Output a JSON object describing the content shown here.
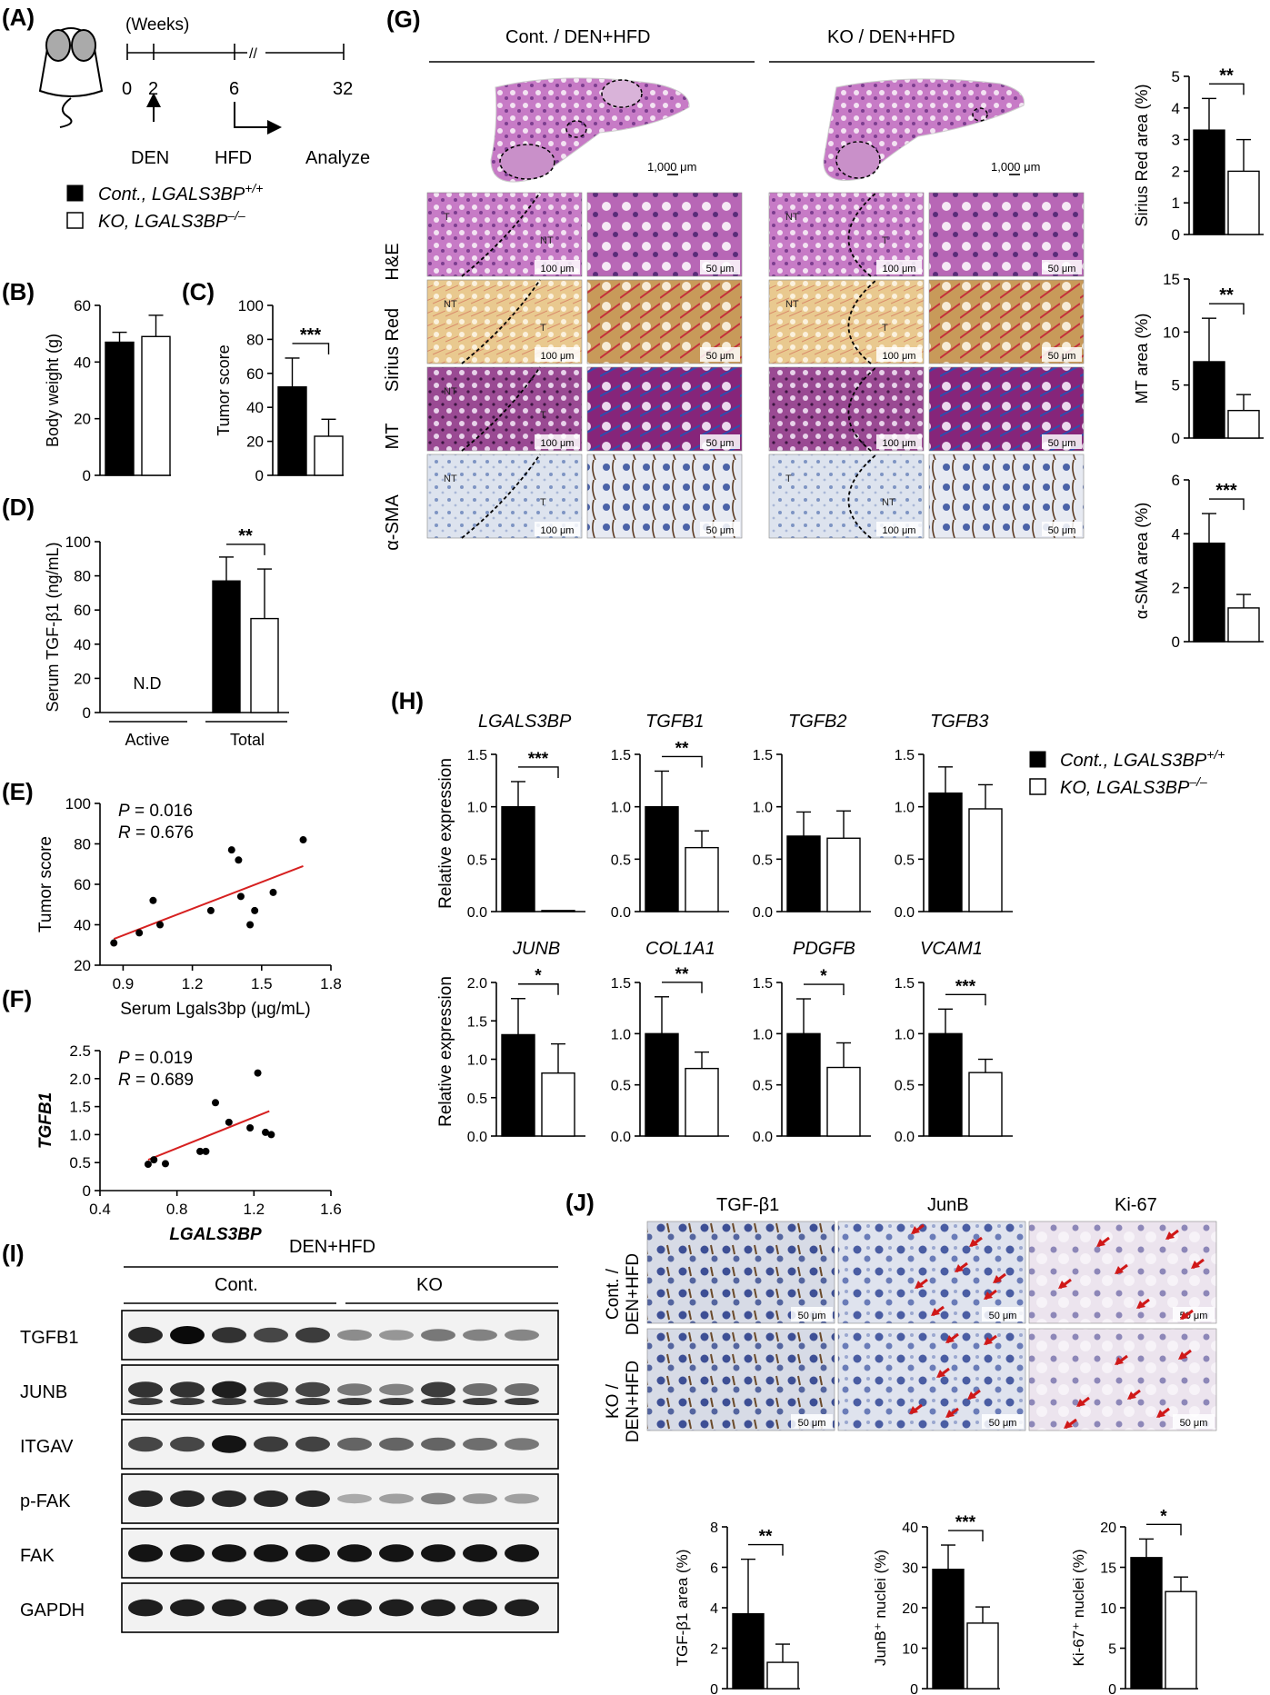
{
  "figure": {
    "panel_labels": {
      "A": "(A)",
      "B": "(B)",
      "C": "(C)",
      "D": "(D)",
      "E": "(E)",
      "F": "(F)",
      "G": "(G)",
      "H": "(H)",
      "I": "(I)",
      "J": "(J)"
    },
    "legend": {
      "cont_prefix": "Cont., ",
      "ko_prefix": "KO, ",
      "gene": "LGALS3BP",
      "cont_sup": "+/+",
      "ko_sup": "–/–"
    },
    "colors": {
      "cont": "#000000",
      "ko": "#ffffff",
      "regression": "#d62020"
    }
  },
  "timeline": {
    "unit": "(Weeks)",
    "ticks": [
      "0",
      "2",
      "6",
      "32"
    ],
    "break": "//",
    "events": [
      "DEN",
      "HFD",
      "Analyze"
    ]
  },
  "panel_g": {
    "groups": [
      "Cont. / DEN+HFD",
      "KO / DEN+HFD"
    ],
    "stains": [
      "H&E",
      "Sirius Red",
      "MT",
      "α-SMA"
    ],
    "scale_large": "1,000 μm",
    "scale_100": "100 μm",
    "scale_50": "50 μm",
    "region_labels": {
      "he": [
        [
          "T",
          "NT"
        ],
        [
          "NT",
          "T"
        ]
      ],
      "sirius": [
        [
          "NT",
          "T"
        ],
        [
          "NT",
          "T"
        ]
      ],
      "mt": [
        [
          "NT",
          "T"
        ],
        [
          "",
          ""
        ]
      ],
      "asma": [
        [
          "NT",
          "T"
        ],
        [
          "T",
          "NT"
        ]
      ]
    }
  },
  "panel_h": {
    "ylabel": "Relative expression",
    "genes_top": [
      "LGALS3BP",
      "TGFB1",
      "TGFB2",
      "TGFB3"
    ],
    "genes_bottom": [
      "JUNB",
      "COL1A1",
      "PDGFB",
      "VCAM1"
    ]
  },
  "panel_i": {
    "condition": "DEN+HFD",
    "groups": [
      "Cont.",
      "KO"
    ],
    "proteins": [
      "TGFB1",
      "JUNB",
      "ITGAV",
      "p-FAK",
      "FAK",
      "GAPDH"
    ]
  },
  "panel_j": {
    "columns": [
      "TGF-β1",
      "JunB",
      "Ki-67"
    ],
    "rows": [
      [
        "Cont. /",
        "DEN+HFD"
      ],
      [
        "KO /",
        "DEN+HFD"
      ]
    ],
    "scale": "50 μm"
  },
  "chart_data": [
    {
      "id": "B",
      "type": "bar",
      "categories": [
        "Cont.",
        "KO"
      ],
      "values": [
        47,
        49
      ],
      "errors": [
        3.5,
        7.5
      ],
      "ylabel": "Body weight (g)",
      "ylim": [
        0,
        60
      ],
      "yticks": [
        "0",
        "20",
        "40",
        "60"
      ],
      "sig": ""
    },
    {
      "id": "C",
      "type": "bar",
      "categories": [
        "Cont.",
        "KO"
      ],
      "values": [
        52,
        23
      ],
      "errors": [
        17,
        10
      ],
      "ylabel": "Tumor score",
      "ylim": [
        0,
        100
      ],
      "yticks": [
        "0",
        "20",
        "40",
        "60",
        "80",
        "100"
      ],
      "sig": "***"
    },
    {
      "id": "D",
      "type": "bar",
      "categories": [
        "Active",
        "Total"
      ],
      "series": [
        {
          "values": [
            null,
            77
          ],
          "errors": [
            null,
            14
          ]
        },
        {
          "values": [
            null,
            55
          ],
          "errors": [
            null,
            29
          ]
        }
      ],
      "ylabel": "Serum TGF-β1 (ng/mL)",
      "ylim": [
        0,
        100
      ],
      "yticks": [
        "0",
        "20",
        "40",
        "60",
        "80",
        "100"
      ],
      "annotation": "N.D",
      "sig": "**"
    },
    {
      "id": "E",
      "type": "scatter",
      "x": [
        0.86,
        0.97,
        1.03,
        1.06,
        1.28,
        1.37,
        1.4,
        1.41,
        1.45,
        1.47,
        1.55,
        1.68
      ],
      "y": [
        31,
        36,
        52,
        40,
        47,
        77,
        72,
        54,
        40,
        47,
        56,
        82
      ],
      "fit": [
        [
          0.86,
          33
        ],
        [
          1.68,
          69
        ]
      ],
      "xlabel": "Serum Lgals3bp (μg/mL)",
      "ylabel": "Tumor score",
      "xlim": [
        0.8,
        1.8
      ],
      "xticks": [
        "0.9",
        "1.2",
        "1.5",
        "1.8"
      ],
      "ylim": [
        20,
        100
      ],
      "yticks": [
        "20",
        "40",
        "60",
        "80",
        "100"
      ],
      "stats": {
        "p_label": "P",
        "p_value": " = 0.016",
        "r_label": "R",
        "r_value": " = 0.676"
      }
    },
    {
      "id": "F",
      "type": "scatter",
      "x": [
        0.65,
        0.68,
        0.74,
        0.92,
        0.95,
        1.0,
        1.07,
        1.18,
        1.22,
        1.26,
        1.29
      ],
      "y": [
        0.47,
        0.55,
        0.48,
        0.7,
        0.7,
        1.57,
        1.22,
        1.12,
        2.1,
        1.04,
        1.0
      ],
      "fit": [
        [
          0.65,
          0.55
        ],
        [
          1.28,
          1.42
        ]
      ],
      "xlabel": "LGALS3BP",
      "ylabel": "TGFB1",
      "xlim": [
        0.4,
        1.6
      ],
      "xticks": [
        "0.4",
        "0.8",
        "1.2",
        "1.6"
      ],
      "ylim": [
        0,
        2.5
      ],
      "yticks": [
        "0",
        "0.5",
        "1.0",
        "1.5",
        "2.0",
        "2.5"
      ],
      "stats": {
        "p_label": "P",
        "p_value": " = 0.019",
        "r_label": "R",
        "r_value": " = 0.689"
      }
    },
    {
      "id": "G1",
      "type": "bar",
      "categories": [
        "Cont.",
        "KO"
      ],
      "values": [
        3.3,
        2.0
      ],
      "errors": [
        1.0,
        1.0
      ],
      "ylabel": "Sirius Red area (%)",
      "ylim": [
        0,
        5
      ],
      "yticks": [
        "0",
        "1",
        "2",
        "3",
        "4",
        "5"
      ],
      "sig": "**"
    },
    {
      "id": "G2",
      "type": "bar",
      "categories": [
        "Cont.",
        "KO"
      ],
      "values": [
        7.2,
        2.6
      ],
      "errors": [
        4.1,
        1.5
      ],
      "ylabel": "MT area (%)",
      "ylim": [
        0,
        15
      ],
      "yticks": [
        "0",
        "5",
        "10",
        "15"
      ],
      "sig": "**"
    },
    {
      "id": "G3",
      "type": "bar",
      "categories": [
        "Cont.",
        "KO"
      ],
      "values": [
        3.65,
        1.25
      ],
      "errors": [
        1.1,
        0.5
      ],
      "ylabel": "α-SMA area (%)",
      "ylim": [
        0,
        6
      ],
      "yticks": [
        "0",
        "2",
        "4",
        "6"
      ],
      "sig": "***"
    },
    {
      "id": "H1",
      "type": "bar",
      "gene": "LGALS3BP",
      "values": [
        1.0,
        0.01
      ],
      "errors": [
        0.24,
        0
      ],
      "ylim": [
        0,
        1.5
      ],
      "yticks": [
        "0.0",
        "0.5",
        "1.0",
        "1.5"
      ],
      "sig": "***"
    },
    {
      "id": "H2",
      "type": "bar",
      "gene": "TGFB1",
      "values": [
        1.0,
        0.61
      ],
      "errors": [
        0.34,
        0.16
      ],
      "ylim": [
        0,
        1.5
      ],
      "yticks": [
        "0.0",
        "0.5",
        "1.0",
        "1.5"
      ],
      "sig": "**"
    },
    {
      "id": "H3",
      "type": "bar",
      "gene": "TGFB2",
      "values": [
        0.72,
        0.7
      ],
      "errors": [
        0.23,
        0.26
      ],
      "ylim": [
        0,
        1.5
      ],
      "yticks": [
        "0.0",
        "0.5",
        "1.0",
        "1.5"
      ],
      "sig": ""
    },
    {
      "id": "H4",
      "type": "bar",
      "gene": "TGFB3",
      "values": [
        1.13,
        0.98
      ],
      "errors": [
        0.25,
        0.23
      ],
      "ylim": [
        0,
        1.5
      ],
      "yticks": [
        "0.0",
        "0.5",
        "1.0",
        "1.5"
      ],
      "sig": ""
    },
    {
      "id": "H5",
      "type": "bar",
      "gene": "JUNB",
      "values": [
        1.32,
        0.82
      ],
      "errors": [
        0.47,
        0.38
      ],
      "ylim": [
        0,
        2.0
      ],
      "yticks": [
        "0.0",
        "0.5",
        "1.0",
        "1.5",
        "2.0"
      ],
      "sig": "*"
    },
    {
      "id": "H6",
      "type": "bar",
      "gene": "COL1A1",
      "values": [
        1.0,
        0.66
      ],
      "errors": [
        0.36,
        0.16
      ],
      "ylim": [
        0,
        1.5
      ],
      "yticks": [
        "0.0",
        "0.5",
        "1.0",
        "1.5"
      ],
      "sig": "**"
    },
    {
      "id": "H7",
      "type": "bar",
      "gene": "PDGFB",
      "values": [
        1.0,
        0.67
      ],
      "errors": [
        0.34,
        0.24
      ],
      "ylim": [
        0,
        1.5
      ],
      "yticks": [
        "0.0",
        "0.5",
        "1.0",
        "1.5"
      ],
      "sig": "*"
    },
    {
      "id": "H8",
      "type": "bar",
      "gene": "VCAM1",
      "values": [
        1.0,
        0.62
      ],
      "errors": [
        0.24,
        0.13
      ],
      "ylim": [
        0,
        1.5
      ],
      "yticks": [
        "0.0",
        "0.5",
        "1.0",
        "1.5"
      ],
      "sig": "***"
    },
    {
      "id": "J1",
      "type": "bar",
      "categories": [
        "Cont.",
        "KO"
      ],
      "values": [
        3.7,
        1.3
      ],
      "errors": [
        2.7,
        0.9
      ],
      "ylabel": "TGF-β1 area (%)",
      "ylim": [
        0,
        8
      ],
      "yticks": [
        "0",
        "2",
        "4",
        "6",
        "8"
      ],
      "sig": "**"
    },
    {
      "id": "J2",
      "type": "bar",
      "categories": [
        "Cont.",
        "KO"
      ],
      "values": [
        29.5,
        16.2
      ],
      "errors": [
        6.0,
        4.0
      ],
      "ylabel": "JunB⁺ nuclei (%)",
      "ylim": [
        0,
        40
      ],
      "yticks": [
        "0",
        "10",
        "20",
        "30",
        "40"
      ],
      "sig": "***"
    },
    {
      "id": "J3",
      "type": "bar",
      "categories": [
        "Cont.",
        "KO"
      ],
      "values": [
        16.2,
        12.0
      ],
      "errors": [
        2.3,
        1.8
      ],
      "ylabel": "Ki-67⁺ nuclei (%)",
      "ylim": [
        0,
        20
      ],
      "yticks": [
        "0",
        "5",
        "10",
        "15",
        "20"
      ],
      "sig": "*"
    }
  ]
}
